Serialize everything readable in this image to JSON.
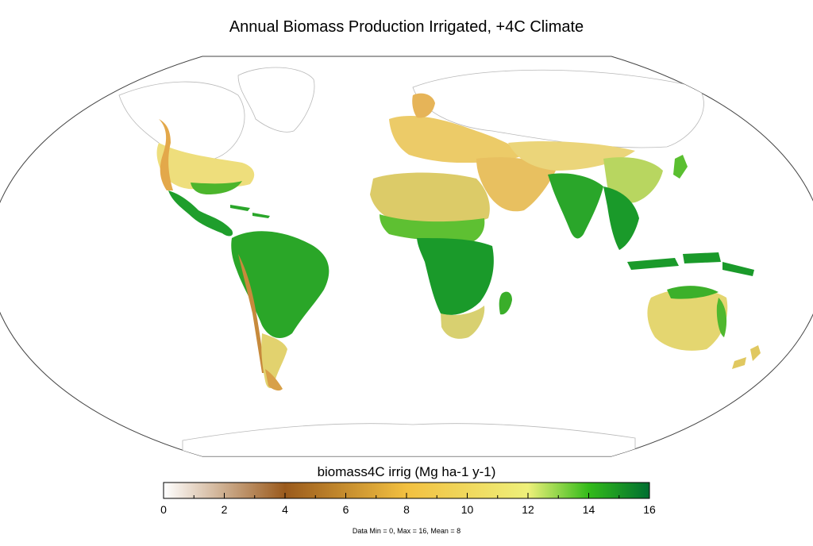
{
  "title": "Annual Biomass Production Irrigated, +4C Climate",
  "legend": {
    "title": "biomass4C irrig (Mg ha-1 y-1)",
    "min": 0,
    "max": 16,
    "major_ticks": [
      "0",
      "2",
      "4",
      "6",
      "8",
      "10",
      "12",
      "14",
      "16"
    ],
    "minor_step": 1,
    "gradient_stops": [
      {
        "value": 0,
        "color": "#ffffff"
      },
      {
        "value": 4,
        "color": "#9a5a1c"
      },
      {
        "value": 8,
        "color": "#f2c040"
      },
      {
        "value": 12,
        "color": "#eef07a"
      },
      {
        "value": 14,
        "color": "#33bb1a"
      },
      {
        "value": 16,
        "color": "#006e30"
      }
    ]
  },
  "footnote": "Data Min = 0, Max = 16, Mean = 8",
  "colors": {
    "ocean": "#ffffff",
    "land_no_data": "#ffffff",
    "coastline": "#b8b8b8",
    "map_outline": "#444444",
    "tropics_dark": "#1a9a2a",
    "tropics_mid": "#2fb52a",
    "temperate_green": "#7bcf3a",
    "dry_yellow": "#e8d870",
    "arid_orange": "#e8b050",
    "mountain_brown": "#c08040"
  }
}
